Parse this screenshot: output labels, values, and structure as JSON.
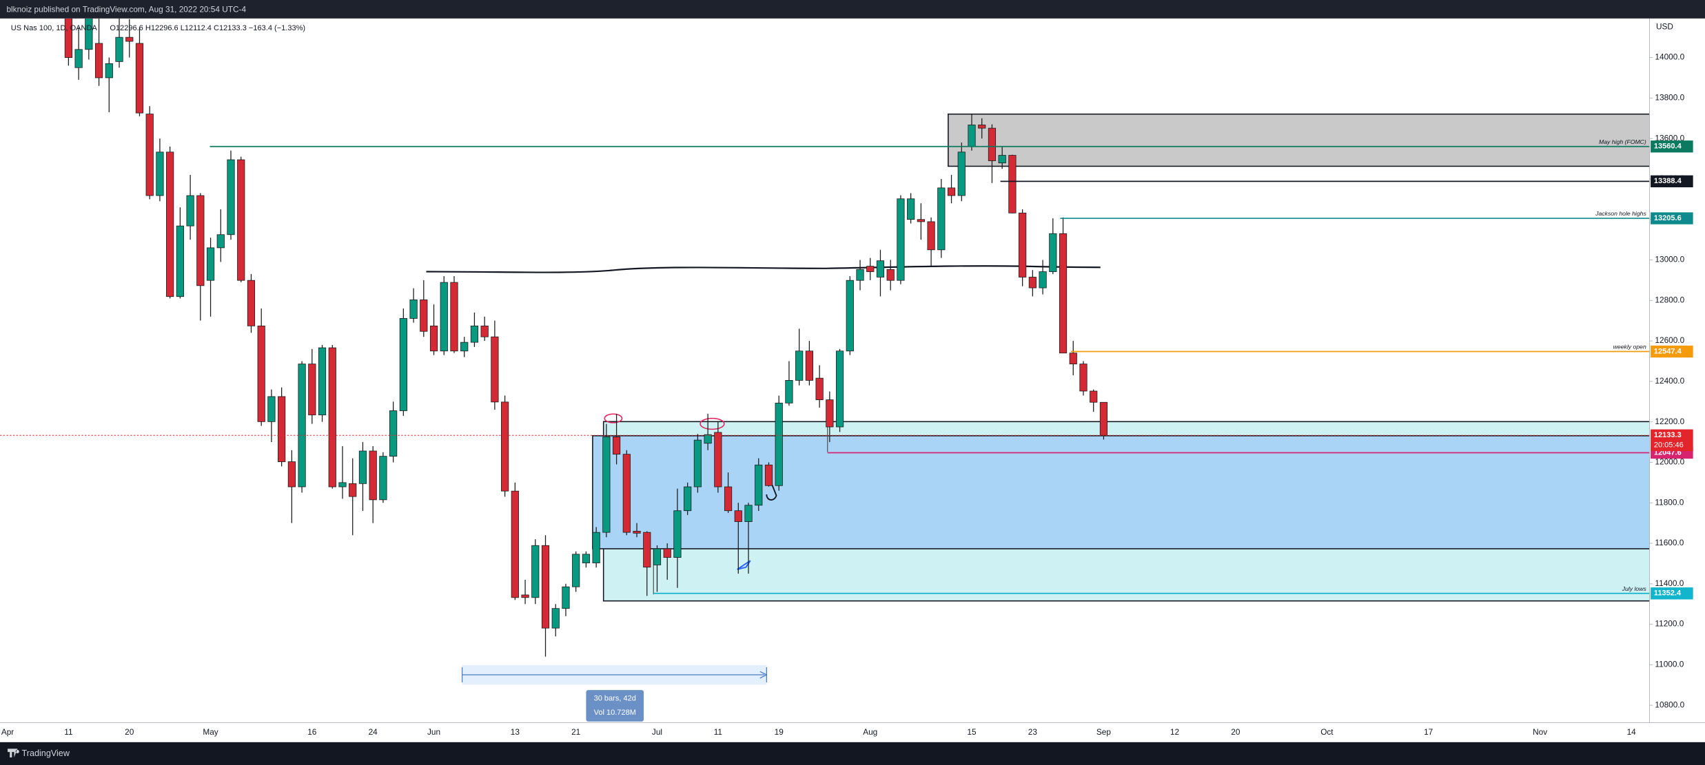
{
  "header": {
    "publisher": "blknoiz published on TradingView.com, Aug 31, 2022 20:54 UTC-4"
  },
  "footer": {
    "brand": "TradingView"
  },
  "chart_data": {
    "type": "candlestick",
    "symbol": "US Nas 100, 1D, OANDA",
    "ohlc_text": "O12296.6 H12296.6 L12112.4 C12133.3 −163.4 (−1.33%)",
    "currency": "USD",
    "up_color": "#089981",
    "down_color": "#d42a35",
    "grid": false,
    "ylim": [
      10714,
      14193
    ],
    "yticks": [
      {
        "value": 10800,
        "label": "10800.0"
      },
      {
        "value": 11000,
        "label": "11000.0"
      },
      {
        "value": 11200,
        "label": "11200.0"
      },
      {
        "value": 11400,
        "label": "11400.0"
      },
      {
        "value": 11600,
        "label": "11600.0"
      },
      {
        "value": 11800,
        "label": "11800.0"
      },
      {
        "value": 12000,
        "label": "12000.0"
      },
      {
        "value": 12200,
        "label": "12200.0"
      },
      {
        "value": 12400,
        "label": "12400.0"
      },
      {
        "value": 12600,
        "label": "12600.0"
      },
      {
        "value": 12800,
        "label": "12800.0"
      },
      {
        "value": 13000,
        "label": "13000.0"
      },
      {
        "value": 13200,
        "label": "13200.0"
      },
      {
        "value": 13400,
        "label": "13400.0"
      },
      {
        "value": 13600,
        "label": "13600.0"
      },
      {
        "value": 13800,
        "label": "13800.0"
      },
      {
        "value": 14000,
        "label": "14000.0"
      }
    ],
    "categories": [
      "Apr",
      null,
      null,
      null,
      null,
      null,
      "11",
      null,
      null,
      null,
      null,
      null,
      "20",
      null,
      null,
      null,
      null,
      null,
      null,
      null,
      "May",
      null,
      null,
      null,
      null,
      null,
      null,
      null,
      null,
      null,
      "16",
      null,
      null,
      null,
      null,
      null,
      "24",
      null,
      null,
      null,
      null,
      null,
      "Jun",
      null,
      null,
      null,
      null,
      null,
      null,
      null,
      "13",
      null,
      null,
      null,
      null,
      null,
      "21",
      null,
      null,
      null,
      null,
      null,
      null,
      null,
      "Jul",
      null,
      null,
      null,
      null,
      null,
      "11",
      null,
      null,
      null,
      null,
      null,
      "19",
      null,
      null,
      null,
      null,
      null,
      null,
      null,
      null,
      "Aug",
      null,
      null,
      null,
      null,
      null,
      null,
      null,
      null,
      null,
      "15",
      null,
      null,
      null,
      null,
      null,
      "23",
      null,
      null,
      null,
      null,
      null,
      null,
      "Sep",
      null,
      null,
      null,
      null,
      null,
      null,
      "12",
      null,
      null,
      null,
      null,
      null,
      "20",
      null,
      null,
      null,
      null,
      null,
      null,
      null,
      null,
      "Oct",
      null,
      null,
      null,
      null,
      null,
      null,
      null,
      null,
      null,
      "17",
      null,
      null,
      null,
      null,
      null,
      null,
      null,
      null,
      null,
      null,
      "Nov",
      null,
      null,
      null,
      null,
      null,
      null,
      null,
      null,
      "14",
      null
    ],
    "open": [
      null,
      null,
      null,
      null,
      null,
      null,
      14220,
      13950,
      14040,
      14070,
      13900,
      13980,
      14100,
      14070,
      13721,
      13318,
      13533,
      12819,
      13168,
      13318,
      12899,
      13060,
      13125,
      13495,
      12899,
      12674,
      12201,
      12325,
      12003,
      11879,
      12486,
      12234,
      12566,
      11879,
      11895,
      11895,
      12056,
      11815,
      12030,
      12255,
      12711,
      12803,
      12674,
      12550,
      12889,
      12550,
      12593,
      12674,
      12620,
      12298,
      11858,
      11345,
      11332,
      11589,
      11181,
      11278,
      11385,
      11503,
      11503,
      11654,
      12126,
      12040,
      11660,
      11654,
      11493,
      11573,
      11530,
      11761,
      11879,
      12094,
      12148,
      11879,
      11761,
      11707,
      11788,
      11987,
      11885,
      12293,
      12405,
      12550,
      12416,
      12309,
      12175,
      12550,
      12899,
      12969,
      12915,
      12953,
      12899,
      13200,
      13200,
      13189,
      13050,
      13356,
      13318,
      13560,
      13667,
      13651,
      13479,
      13517,
      13232,
      12915,
      12862,
      12942,
      13130,
      12540,
      12486,
      12352,
      12296.6,
      null,
      null,
      null,
      null,
      null,
      null,
      null,
      null,
      null,
      null,
      null,
      null,
      null,
      null,
      null,
      null,
      null,
      null,
      null,
      null,
      null,
      null,
      null,
      null,
      null,
      null,
      null,
      null,
      null,
      null,
      null,
      null,
      null,
      null,
      null,
      null,
      null,
      null,
      null,
      null,
      null,
      null,
      null,
      null,
      null,
      null,
      null,
      null,
      null,
      null,
      null,
      null,
      null
    ],
    "high": [
      null,
      null,
      null,
      null,
      null,
      null,
      14290,
      14150,
      14350,
      14230,
      14000,
      14200,
      14190,
      14150,
      13760,
      13600,
      13560,
      13260,
      13420,
      13330,
      13110,
      13250,
      13540,
      13510,
      12930,
      12760,
      12360,
      12370,
      12060,
      12500,
      12560,
      12580,
      12580,
      12080,
      12020,
      12100,
      12080,
      12050,
      12300,
      12760,
      12860,
      12900,
      12780,
      12920,
      12920,
      12620,
      12740,
      12720,
      12700,
      12330,
      11900,
      11420,
      11620,
      11640,
      11300,
      11400,
      11560,
      11560,
      11680,
      12190,
      12240,
      12060,
      11700,
      11660,
      11590,
      11600,
      11870,
      11900,
      12140,
      12240,
      12200,
      11950,
      11800,
      11800,
      12020,
      12000,
      12330,
      12500,
      12660,
      12600,
      12480,
      12350,
      12560,
      12920,
      13000,
      13010,
      13050,
      13000,
      13320,
      13330,
      13280,
      13210,
      13400,
      13420,
      13580,
      13720,
      13700,
      13670,
      13560,
      13520,
      13250,
      12950,
      13000,
      13205.6,
      13210,
      12600,
      12500,
      12360,
      12296.6,
      null,
      null,
      null,
      null,
      null,
      null,
      null,
      null,
      null,
      null,
      null,
      null,
      null,
      null,
      null,
      null,
      null,
      null,
      null,
      null,
      null,
      null,
      null,
      null,
      null,
      null,
      null,
      null,
      null,
      null,
      null,
      null,
      null,
      null,
      null,
      null,
      null,
      null,
      null,
      null,
      null,
      null,
      null,
      null,
      null,
      null,
      null,
      null,
      null,
      null,
      null,
      null,
      null
    ],
    "low": [
      null,
      null,
      null,
      null,
      null,
      null,
      13960,
      13890,
      13990,
      13860,
      13730,
      13950,
      14000,
      13710,
      13300,
      13290,
      12810,
      12810,
      13100,
      12700,
      12720,
      12990,
      13100,
      12890,
      12640,
      12180,
      12100,
      11980,
      11700,
      11850,
      12190,
      12200,
      11870,
      11820,
      11640,
      11760,
      11700,
      11800,
      12000,
      12230,
      12690,
      12620,
      12530,
      12530,
      12540,
      12520,
      12570,
      12600,
      12260,
      11830,
      11320,
      11300,
      11300,
      11040,
      11140,
      11240,
      11360,
      11480,
      11480,
      11630,
      11990,
      11640,
      11630,
      11340,
      11360,
      11420,
      11380,
      11740,
      11850,
      12060,
      11850,
      11750,
      11450,
      11450,
      11760,
      11880,
      11860,
      12280,
      12380,
      12380,
      12270,
      12100,
      12150,
      12530,
      12850,
      12900,
      12820,
      12850,
      12880,
      13180,
      13100,
      12970,
      13010,
      13280,
      13290,
      13540,
      13600,
      13380,
      13450,
      13230,
      12870,
      12820,
      12830,
      12930,
      12540,
      12430,
      12330,
      12250,
      12112.4,
      null,
      null,
      null,
      null,
      null,
      null,
      null,
      null,
      null,
      null,
      null,
      null,
      null,
      null,
      null,
      null,
      null,
      null,
      null,
      null,
      null,
      null,
      null,
      null,
      null,
      null,
      null,
      null,
      null,
      null,
      null,
      null,
      null,
      null,
      null,
      null,
      null,
      null,
      null,
      null,
      null,
      null,
      null,
      null,
      null,
      null,
      null,
      null,
      null,
      null,
      null,
      null,
      null
    ],
    "close": [
      null,
      null,
      null,
      null,
      null,
      null,
      14000,
      14040,
      14200,
      13900,
      13970,
      14100,
      14080,
      13726,
      13318,
      13533,
      12819,
      13168,
      13318,
      12873,
      13060,
      13125,
      13495,
      12899,
      12674,
      12201,
      12325,
      12003,
      11879,
      12486,
      12234,
      12566,
      11879,
      11900,
      11831,
      12056,
      11815,
      12030,
      12255,
      12711,
      12803,
      12647,
      12550,
      12889,
      12550,
      12593,
      12674,
      12620,
      12298,
      11858,
      11332,
      11332,
      11589,
      11181,
      11278,
      11385,
      11546,
      11546,
      11654,
      12126,
      12040,
      11654,
      11650,
      11482,
      11573,
      11530,
      11761,
      11879,
      12110,
      12137,
      11879,
      11761,
      11707,
      11788,
      11987,
      11885,
      12293,
      12405,
      12550,
      12405,
      12309,
      12175,
      12550,
      12899,
      12953,
      12942,
      12996,
      12899,
      13302,
      13302,
      13189,
      13050,
      13356,
      13318,
      13533,
      13667,
      13651,
      13490,
      13517,
      13232,
      12915,
      12862,
      12942,
      13130,
      12540,
      12486,
      12352,
      12296.7,
      12133.3,
      null,
      null,
      null,
      null,
      null,
      null,
      null,
      null,
      null,
      null,
      null,
      null,
      null,
      null,
      null,
      null,
      null,
      null,
      null,
      null,
      null,
      null,
      null,
      null,
      null,
      null,
      null,
      null,
      null,
      null,
      null,
      null,
      null,
      null,
      null,
      null,
      null,
      null,
      null,
      null,
      null,
      null,
      null,
      null,
      null,
      null,
      null,
      null,
      null,
      null,
      null,
      null,
      null
    ],
    "levels": [
      {
        "name": "May high (FOMC)",
        "value": 13560.4,
        "color": "#0b7a5f"
      },
      {
        "value": 13388.4,
        "color": "#131722"
      },
      {
        "name": "Jackson hole highs",
        "value": 13205.6,
        "color": "#0f8a8c"
      },
      {
        "name": "weekly open",
        "value": 12547.4,
        "color": "#f59a0b"
      },
      {
        "value": 12047.6,
        "color": "#d6246e"
      },
      {
        "name": "July lows",
        "value": 11352.4,
        "color": "#12b5cb"
      }
    ],
    "last_price": {
      "value": 12133.3,
      "countdown": "20:05:46",
      "color": "#e3242b"
    },
    "measure": {
      "bars_label": "30 bars, 42d",
      "volume_label": "Vol 10.728M"
    }
  }
}
